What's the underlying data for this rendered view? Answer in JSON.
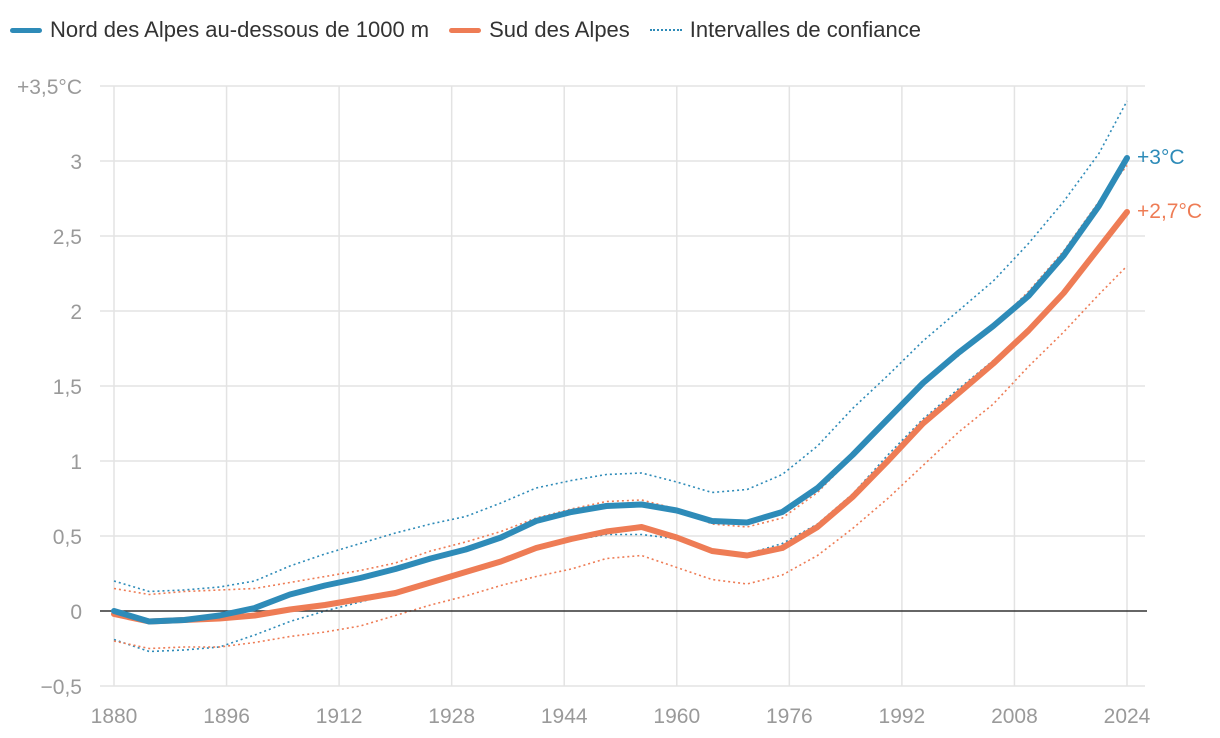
{
  "chart_data": {
    "type": "line",
    "legend_position": "top-left",
    "grid": true,
    "xlim": [
      1880,
      2024
    ],
    "ylim": [
      -0.5,
      3.5
    ],
    "x_ticks": [
      1880,
      1896,
      1912,
      1928,
      1944,
      1960,
      1976,
      1992,
      2008,
      2024
    ],
    "x_tick_labels": [
      "1880",
      "1896",
      "1912",
      "1928",
      "1944",
      "1960",
      "1976",
      "1992",
      "2008",
      "2024"
    ],
    "y_ticks": [
      -0.5,
      0,
      0.5,
      1,
      1.5,
      2,
      2.5,
      3,
      3.5
    ],
    "y_tick_labels": [
      "−0,5",
      "0",
      "0,5",
      "1",
      "1,5",
      "2",
      "2,5",
      "3",
      "+3,5°C"
    ],
    "legend": {
      "north": "Nord des Alpes au-dessous de 1000 m",
      "south": "Sud des Alpes",
      "ci": "Intervalles de confiance"
    },
    "x": [
      1880,
      1885,
      1890,
      1895,
      1900,
      1905,
      1910,
      1915,
      1920,
      1925,
      1930,
      1935,
      1940,
      1945,
      1950,
      1955,
      1960,
      1965,
      1970,
      1975,
      1980,
      1985,
      1990,
      1995,
      2000,
      2005,
      2010,
      2015,
      2020,
      2024
    ],
    "series": [
      {
        "key": "north",
        "name": "Nord des Alpes au-dessous de 1000 m",
        "color": "#2e8bb8",
        "end_label": "+3°C",
        "values": [
          0.0,
          -0.07,
          -0.06,
          -0.03,
          0.02,
          0.11,
          0.17,
          0.22,
          0.28,
          0.35,
          0.41,
          0.49,
          0.6,
          0.66,
          0.7,
          0.71,
          0.67,
          0.6,
          0.59,
          0.66,
          0.82,
          1.04,
          1.28,
          1.52,
          1.72,
          1.9,
          2.1,
          2.37,
          2.7,
          3.02
        ]
      },
      {
        "key": "south",
        "name": "Sud des Alpes",
        "color": "#ee7c55",
        "end_label": "+2,7°C",
        "values": [
          -0.02,
          -0.07,
          -0.06,
          -0.05,
          -0.03,
          0.01,
          0.04,
          0.08,
          0.12,
          0.19,
          0.26,
          0.33,
          0.42,
          0.48,
          0.53,
          0.56,
          0.49,
          0.4,
          0.37,
          0.42,
          0.56,
          0.76,
          1.0,
          1.25,
          1.45,
          1.65,
          1.87,
          2.12,
          2.42,
          2.66
        ]
      }
    ],
    "confidence_intervals": [
      {
        "key": "north",
        "upper": [
          0.2,
          0.13,
          0.14,
          0.16,
          0.2,
          0.3,
          0.38,
          0.45,
          0.52,
          0.58,
          0.63,
          0.72,
          0.82,
          0.87,
          0.91,
          0.92,
          0.86,
          0.79,
          0.81,
          0.91,
          1.1,
          1.35,
          1.57,
          1.8,
          2.0,
          2.2,
          2.45,
          2.73,
          3.05,
          3.4
        ],
        "lower": [
          -0.19,
          -0.27,
          -0.26,
          -0.24,
          -0.16,
          -0.07,
          0.0,
          0.06,
          0.12,
          0.2,
          0.26,
          0.33,
          0.42,
          0.47,
          0.51,
          0.51,
          0.48,
          0.41,
          0.38,
          0.45,
          0.58,
          0.78,
          1.04,
          1.28,
          1.48,
          1.67,
          1.87,
          2.12,
          2.42,
          2.65
        ]
      },
      {
        "key": "south",
        "upper": [
          0.15,
          0.11,
          0.13,
          0.14,
          0.15,
          0.19,
          0.23,
          0.27,
          0.32,
          0.4,
          0.46,
          0.53,
          0.62,
          0.68,
          0.73,
          0.74,
          0.68,
          0.58,
          0.56,
          0.62,
          0.79,
          1.03,
          1.27,
          1.52,
          1.7,
          1.9,
          2.13,
          2.4,
          2.73,
          2.97
        ],
        "lower": [
          -0.2,
          -0.25,
          -0.24,
          -0.24,
          -0.21,
          -0.17,
          -0.14,
          -0.1,
          -0.03,
          0.04,
          0.1,
          0.17,
          0.23,
          0.28,
          0.35,
          0.37,
          0.29,
          0.21,
          0.18,
          0.24,
          0.37,
          0.55,
          0.75,
          0.97,
          1.19,
          1.38,
          1.63,
          1.86,
          2.11,
          2.3
        ]
      }
    ]
  }
}
